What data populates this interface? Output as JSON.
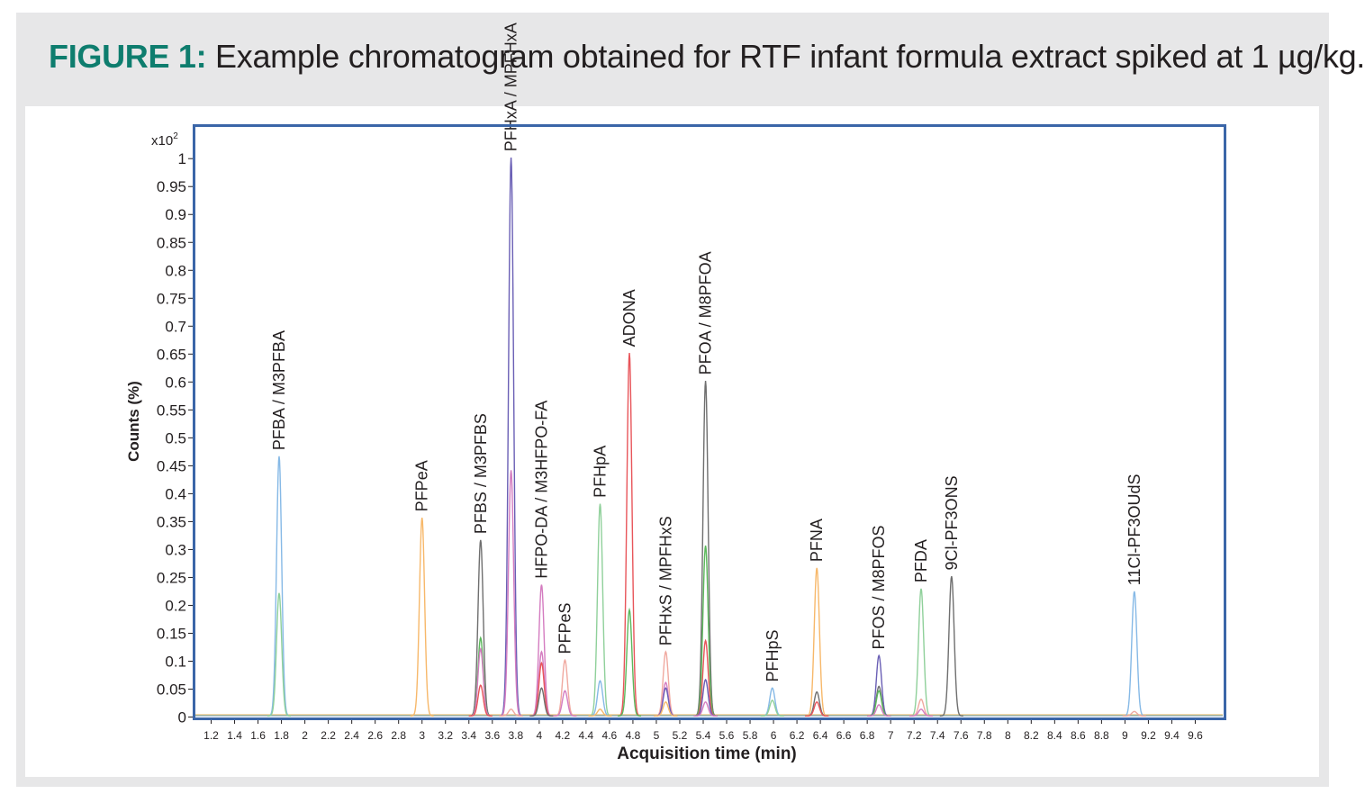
{
  "figure": {
    "label": "FIGURE 1:",
    "caption": "Example chromatogram obtained for RTF infant formula extract spiked at 1 µg/kg."
  },
  "chart_data": {
    "type": "line",
    "xlabel": "Acquisition time (min)",
    "ylabel": "Counts (%)",
    "y_multiplier": "x10",
    "y_multiplier_exp": "2",
    "xlim": [
      1.05,
      9.85
    ],
    "ylim": [
      -0.004,
      1.06
    ],
    "x_ticks": [
      "1.2",
      "1.4",
      "1.6",
      "1.8",
      "2",
      "2.2",
      "2.4",
      "2.6",
      "2.8",
      "3",
      "3.2",
      "3.4",
      "3.6",
      "3.8",
      "4",
      "4.2",
      "4.4",
      "4.6",
      "4.8",
      "5",
      "5.2",
      "5.4",
      "5.6",
      "5.8",
      "6",
      "6.2",
      "6.4",
      "6.6",
      "6.8",
      "7",
      "7.2",
      "7.4",
      "7.6",
      "7.8",
      "8",
      "8.2",
      "8.4",
      "8.6",
      "8.8",
      "9",
      "9.2",
      "9.4",
      "9.6"
    ],
    "y_ticks": [
      "0",
      "0.05",
      "0.1",
      "0.15",
      "0.2",
      "0.25",
      "0.3",
      "0.35",
      "0.4",
      "0.45",
      "0.5",
      "0.55",
      "0.6",
      "0.65",
      "0.7",
      "0.75",
      "0.8",
      "0.85",
      "0.9",
      "0.95",
      "1"
    ],
    "colors": {
      "light_blue": "#86b9e6",
      "light_green": "#8fd09a",
      "orange": "#f7b86a",
      "grey": "#6f6f6f",
      "red": "#e8555a",
      "green": "#5cb85c",
      "purple": "#6a5fb5",
      "pink": "#d47cc0",
      "salmon": "#f0a9a0"
    },
    "peaks": [
      {
        "label": "PFBA / M3PFBA",
        "x": 1.78,
        "traces": [
          [
            "light_blue",
            0.465
          ],
          [
            "light_green",
            0.22
          ]
        ]
      },
      {
        "label": "PFPeA",
        "x": 3.0,
        "traces": [
          [
            "orange",
            0.355
          ]
        ]
      },
      {
        "label": "PFBS / M3PFBS",
        "x": 3.5,
        "traces": [
          [
            "grey",
            0.315
          ],
          [
            "green",
            0.14
          ],
          [
            "pink",
            0.12
          ],
          [
            "red",
            0.055
          ]
        ]
      },
      {
        "label": "PFHxA / MPFHxA",
        "x": 3.76,
        "traces": [
          [
            "purple",
            1.0
          ],
          [
            "pink",
            0.44
          ],
          [
            "salmon",
            0.012
          ]
        ]
      },
      {
        "label": "HFPO-DA / M3HFPO-FA",
        "x": 4.02,
        "traces": [
          [
            "pink",
            0.235
          ],
          [
            "pink",
            0.115
          ],
          [
            "red",
            0.095
          ],
          [
            "grey",
            0.05
          ]
        ]
      },
      {
        "label": "PFPeS",
        "x": 4.22,
        "traces": [
          [
            "salmon",
            0.1
          ],
          [
            "pink",
            0.045
          ]
        ]
      },
      {
        "label": "PFHpA",
        "x": 4.52,
        "traces": [
          [
            "light_green",
            0.38
          ],
          [
            "light_blue",
            0.063
          ],
          [
            "orange",
            0.012
          ]
        ]
      },
      {
        "label": "ADONA",
        "x": 4.77,
        "traces": [
          [
            "red",
            0.65
          ],
          [
            "green",
            0.19
          ]
        ]
      },
      {
        "label": "PFHxS / MPFHxS",
        "x": 5.08,
        "traces": [
          [
            "salmon",
            0.115
          ],
          [
            "pink",
            0.06
          ],
          [
            "purple",
            0.05
          ],
          [
            "orange",
            0.025
          ]
        ]
      },
      {
        "label": "PFOA / M8PFOA",
        "x": 5.42,
        "traces": [
          [
            "grey",
            0.6
          ],
          [
            "green",
            0.305
          ],
          [
            "red",
            0.135
          ],
          [
            "purple",
            0.065
          ],
          [
            "pink",
            0.025
          ]
        ]
      },
      {
        "label": "PFHpS",
        "x": 5.99,
        "traces": [
          [
            "light_blue",
            0.05
          ],
          [
            "light_green",
            0.028
          ]
        ]
      },
      {
        "label": "PFNA",
        "x": 6.37,
        "traces": [
          [
            "orange",
            0.265
          ],
          [
            "grey",
            0.043
          ],
          [
            "red",
            0.025
          ]
        ]
      },
      {
        "label": "PFOS / M8PFOS",
        "x": 6.9,
        "traces": [
          [
            "purple",
            0.108
          ],
          [
            "grey",
            0.053
          ],
          [
            "green",
            0.045
          ],
          [
            "pink",
            0.02
          ]
        ]
      },
      {
        "label": "PFDA",
        "x": 7.26,
        "traces": [
          [
            "light_green",
            0.228
          ],
          [
            "salmon",
            0.03
          ],
          [
            "pink",
            0.012
          ]
        ]
      },
      {
        "label": "9Cl-PF3ONS",
        "x": 7.52,
        "traces": [
          [
            "grey",
            0.25
          ]
        ]
      },
      {
        "label": "11Cl-PF3OUdS",
        "x": 9.08,
        "traces": [
          [
            "light_blue",
            0.223
          ],
          [
            "salmon",
            0.008
          ]
        ]
      }
    ]
  }
}
